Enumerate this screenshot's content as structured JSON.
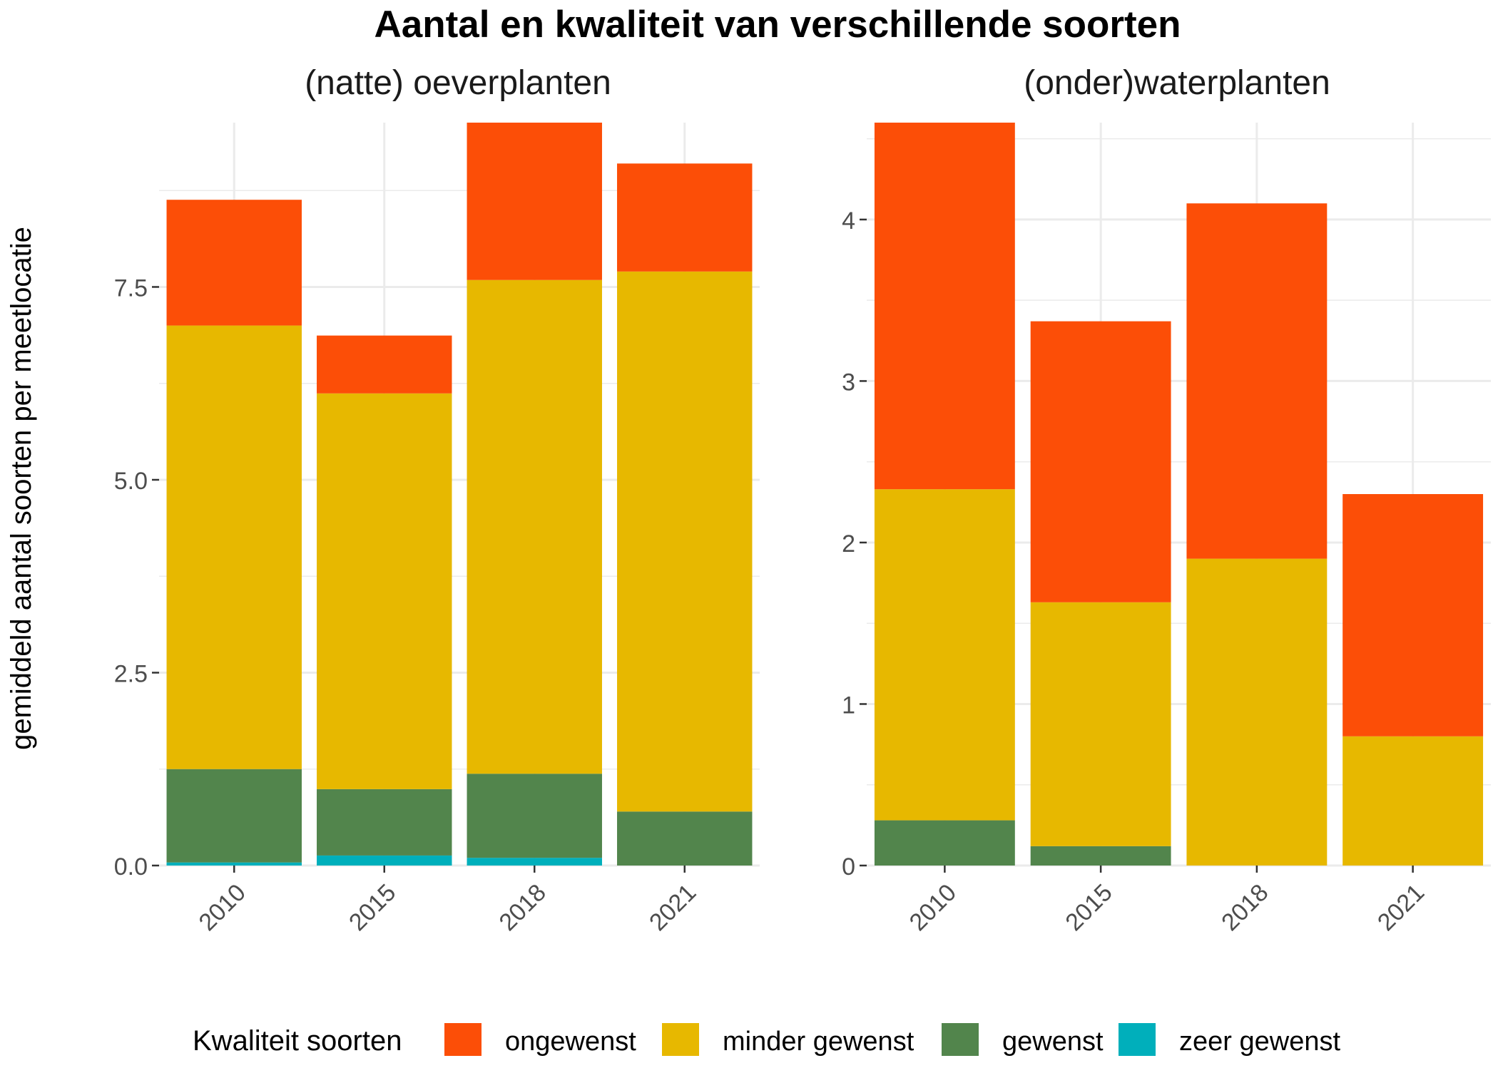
{
  "chart_data": {
    "type": "bar",
    "stacked": true,
    "title": "Aantal en kwaliteit van verschillende soorten",
    "ylabel": "gemiddeld aantal soorten per meetlocatie",
    "categories": [
      "2010",
      "2015",
      "2018",
      "2021"
    ],
    "legend": {
      "title": "Kwaliteit soorten",
      "position": "bottom",
      "items": [
        {
          "key": "ongewenst",
          "label": "ongewenst",
          "color": "#fc4e07"
        },
        {
          "key": "minder_gewenst",
          "label": "minder gewenst",
          "color": "#e7b800"
        },
        {
          "key": "gewenst",
          "label": "gewenst",
          "color": "#52854c"
        },
        {
          "key": "zeer_gewenst",
          "label": "zeer gewenst",
          "color": "#00afbb"
        }
      ]
    },
    "stack_order": [
      "zeer_gewenst",
      "gewenst",
      "minder_gewenst",
      "ongewenst"
    ],
    "grid": true,
    "panels": [
      {
        "title": "(natte) oeverplanten",
        "ylim": [
          0,
          9.63
        ],
        "yticks": [
          0,
          2.5,
          5,
          7.5
        ],
        "ytick_labels": [
          "0.0",
          "2.5",
          "5.0",
          "7.5"
        ],
        "series": [
          {
            "key": "zeer_gewenst",
            "name": "zeer gewenst",
            "values": [
              0.04,
              0.13,
              0.1,
              0
            ]
          },
          {
            "key": "gewenst",
            "name": "gewenst",
            "values": [
              1.21,
              0.86,
              1.09,
              0.7
            ]
          },
          {
            "key": "minder_gewenst",
            "name": "minder gewenst",
            "values": [
              5.75,
              5.13,
              6.4,
              7.0
            ]
          },
          {
            "key": "ongewenst",
            "name": "ongewenst",
            "values": [
              1.63,
              0.75,
              2.04,
              1.4
            ]
          }
        ]
      },
      {
        "title": "(onder)waterplanten",
        "ylim": [
          0,
          4.6
        ],
        "yticks": [
          0,
          1,
          2,
          3,
          4
        ],
        "ytick_labels": [
          "0",
          "1",
          "2",
          "3",
          "4"
        ],
        "series": [
          {
            "key": "zeer_gewenst",
            "name": "zeer gewenst",
            "values": [
              0,
              0,
              0,
              0
            ]
          },
          {
            "key": "gewenst",
            "name": "gewenst",
            "values": [
              0.28,
              0.12,
              0,
              0
            ]
          },
          {
            "key": "minder_gewenst",
            "name": "minder gewenst",
            "values": [
              2.05,
              1.51,
              1.9,
              0.8
            ]
          },
          {
            "key": "ongewenst",
            "name": "ongewenst",
            "values": [
              2.27,
              1.74,
              2.2,
              1.5
            ]
          }
        ]
      }
    ]
  }
}
